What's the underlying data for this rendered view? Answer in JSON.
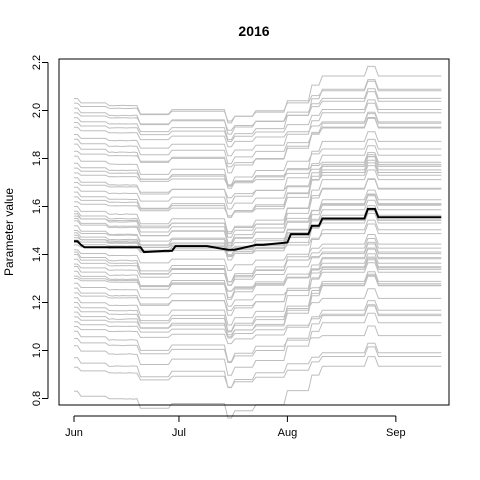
{
  "chart_data": {
    "type": "line",
    "title": "2016",
    "xlabel": "",
    "ylabel": "Parameter value",
    "x_ticks": [
      "Jun",
      "Jul",
      "Aug",
      "Sep"
    ],
    "x_tick_days": [
      0,
      30,
      61,
      92
    ],
    "x_range_days": [
      -5,
      108
    ],
    "ylim": [
      0.78,
      2.22
    ],
    "y_ticks": [
      0.8,
      1.0,
      1.2,
      1.4,
      1.6,
      1.8,
      2.0,
      2.2
    ],
    "grid": false,
    "legend": "none",
    "background_series": {
      "name": "",
      "color": "#bebebe",
      "base_start_values": [
        2.05,
        2.03,
        2.01,
        1.99,
        1.97,
        1.95,
        1.93,
        1.9,
        1.88,
        1.86,
        1.83,
        1.81,
        1.78,
        1.76,
        1.74,
        1.72,
        1.7,
        1.68,
        1.66,
        1.64,
        1.62,
        1.6,
        1.58,
        1.57,
        1.56,
        1.55,
        1.54,
        1.52,
        1.5,
        1.49,
        1.48,
        1.47,
        1.46,
        1.45,
        1.44,
        1.42,
        1.41,
        1.4,
        1.38,
        1.36,
        1.35,
        1.33,
        1.31,
        1.3,
        1.28,
        1.26,
        1.24,
        1.22,
        1.2,
        1.18,
        1.16,
        1.14,
        1.12,
        1.1,
        1.08,
        1.05,
        1.02,
        0.97,
        0.93,
        0.83
      ]
    },
    "series": [
      {
        "name": "",
        "color": "#000000",
        "x_days": [
          0,
          1,
          2,
          3,
          10,
          19,
          20,
          26,
          28,
          29,
          38,
          44,
          46,
          52,
          54,
          61,
          62,
          67,
          68,
          70,
          71,
          83,
          84,
          86,
          87,
          105
        ],
        "values": [
          1.455,
          1.455,
          1.44,
          1.43,
          1.43,
          1.43,
          1.41,
          1.415,
          1.415,
          1.435,
          1.435,
          1.42,
          1.42,
          1.44,
          1.44,
          1.45,
          1.485,
          1.485,
          1.52,
          1.52,
          1.55,
          1.55,
          1.59,
          1.59,
          1.555,
          1.555
        ]
      }
    ]
  }
}
